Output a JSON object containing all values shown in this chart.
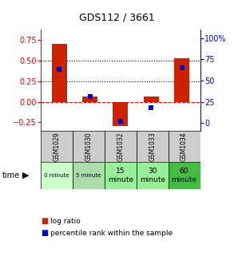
{
  "title": "GDS112 / 3661",
  "samples": [
    "GSM1029",
    "GSM1030",
    "GSM1032",
    "GSM1033",
    "GSM1034"
  ],
  "time_labels": [
    "0 minute",
    "5 minute",
    "15\nminute",
    "30\nminute",
    "60\nminute"
  ],
  "time_colors": [
    "#ccffcc",
    "#aaddaa",
    "#99ee99",
    "#99ee99",
    "#44bb44"
  ],
  "log_ratio": [
    0.7,
    0.06,
    -0.3,
    0.06,
    0.53
  ],
  "percentile": [
    63,
    31,
    2,
    18,
    65
  ],
  "ylim_left": [
    -0.35,
    0.88
  ],
  "ylim_right": [
    -8.75,
    110
  ],
  "bar_color": "#cc2200",
  "dot_color": "#0000cc",
  "left_yticks": [
    -0.25,
    0.0,
    0.25,
    0.5,
    0.75
  ],
  "right_yticks": [
    0,
    25,
    50,
    75,
    100
  ],
  "sample_row_color": "#cccccc",
  "bar_width": 0.5
}
